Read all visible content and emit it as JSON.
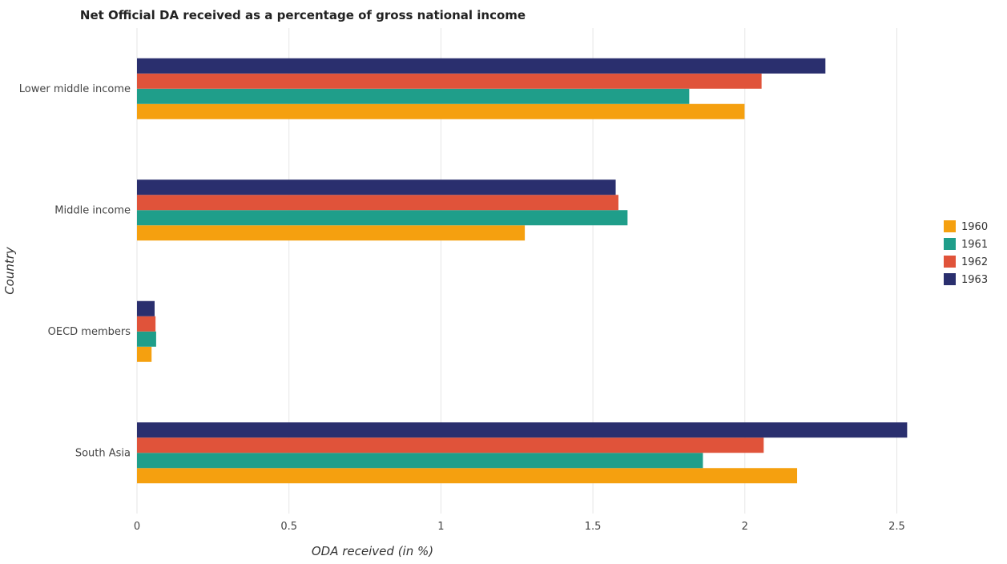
{
  "chart_data": {
    "type": "bar",
    "orientation": "horizontal",
    "title": "Net Official DA received as a percentage of gross national income",
    "xlabel": "ODA received (in %)",
    "ylabel": "Country",
    "categories": [
      "Lower middle income",
      "Middle income",
      "OECD members",
      "South Asia"
    ],
    "series": [
      {
        "name": "1960",
        "color": "#f5a00f",
        "values": [
          1.999,
          1.276,
          0.048,
          2.172
        ]
      },
      {
        "name": "1961",
        "color": "#1f9e8a",
        "values": [
          1.817,
          1.614,
          0.063,
          1.862
        ]
      },
      {
        "name": "1962",
        "color": "#e0533a",
        "values": [
          2.055,
          1.584,
          0.061,
          2.062
        ]
      },
      {
        "name": "1963",
        "color": "#2a2f6e",
        "values": [
          2.265,
          1.575,
          0.058,
          2.534
        ]
      }
    ],
    "xlim": [
      0,
      2.62
    ],
    "xticks": [
      0,
      0.5,
      1,
      1.5,
      2,
      2.5
    ],
    "xtick_labels": [
      "0",
      "0.5",
      "1",
      "1.5",
      "2",
      "2.5"
    ],
    "grid": true,
    "legend": "center-right"
  }
}
